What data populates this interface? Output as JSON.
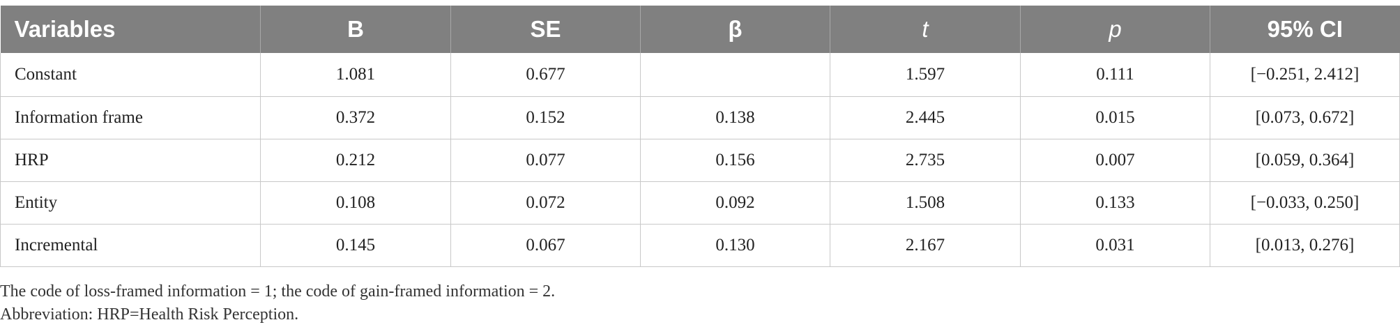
{
  "table": {
    "headers": [
      "Variables",
      "B",
      "SE",
      "β",
      "t",
      "p",
      "95% CI"
    ],
    "rows": [
      [
        "Constant",
        "1.081",
        "0.677",
        "",
        "1.597",
        "0.111",
        "[−0.251, 2.412]"
      ],
      [
        "Information frame",
        "0.372",
        "0.152",
        "0.138",
        "2.445",
        "0.015",
        "[0.073, 0.672]"
      ],
      [
        "HRP",
        "0.212",
        "0.077",
        "0.156",
        "2.735",
        "0.007",
        "[0.059, 0.364]"
      ],
      [
        "Entity",
        "0.108",
        "0.072",
        "0.092",
        "1.508",
        "0.133",
        "[−0.033, 0.250]"
      ],
      [
        "Incremental",
        "0.145",
        "0.067",
        "0.130",
        "2.167",
        "0.031",
        "[0.013, 0.276]"
      ]
    ]
  },
  "notes": {
    "line1": "The code of loss-framed information = 1; the code of gain-framed information = 2.",
    "line2": "Abbreviation: HRP=Health Risk Perception."
  },
  "colors": {
    "header_bg": "#808080",
    "header_text": "#ffffff",
    "grid": "#c8c8c8"
  }
}
